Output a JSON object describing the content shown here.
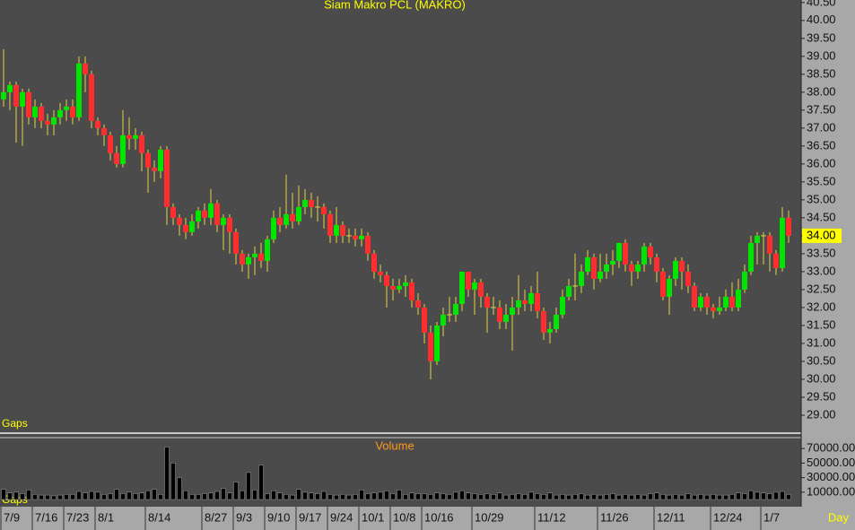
{
  "chart_data": {
    "type": "candlestick",
    "title": "Siam Makro PCL (MAKRO)",
    "gap_note": "o Gaps",
    "volume_title": "Volume",
    "period_label": "Day",
    "up_color": "#00e600",
    "down_color": "#ff2d2d",
    "wick_color": "#e6d24a",
    "volume_color": "#000000",
    "categories": [
      "7/9",
      null,
      null,
      null,
      null,
      "7/16",
      null,
      null,
      null,
      null,
      "7/23",
      null,
      null,
      null,
      null,
      "8/1",
      null,
      null,
      null,
      null,
      null,
      null,
      null,
      "8/14",
      null,
      null,
      null,
      null,
      null,
      null,
      null,
      null,
      "8/27",
      null,
      null,
      null,
      null,
      "9/3",
      null,
      null,
      null,
      null,
      "9/10",
      null,
      null,
      null,
      null,
      "9/17",
      null,
      null,
      null,
      null,
      "9/24",
      null,
      null,
      null,
      null,
      "10/1",
      null,
      null,
      null,
      null,
      "10/8",
      null,
      null,
      null,
      null,
      "10/16",
      null,
      null,
      null,
      null,
      null,
      null,
      null,
      "10/29",
      null,
      null,
      null,
      null,
      null,
      null,
      null,
      null,
      null,
      "11/12",
      null,
      null,
      null,
      null,
      null,
      null,
      null,
      null,
      null,
      "11/26",
      null,
      null,
      null,
      null,
      null,
      null,
      null,
      null,
      "12/11",
      null,
      null,
      null,
      null,
      null,
      null,
      null,
      null,
      "12/24",
      null,
      null,
      null,
      null,
      null,
      null,
      null,
      "1/7",
      null,
      null,
      null,
      null
    ],
    "open": [
      37.8,
      38.0,
      38.2,
      37.6,
      38.0,
      37.3,
      37.6,
      37.2,
      37.1,
      37.3,
      37.5,
      37.6,
      37.3,
      38.8,
      38.5,
      37.2,
      37.0,
      36.8,
      36.3,
      36.0,
      36.8,
      36.7,
      36.8,
      36.3,
      35.9,
      35.8,
      36.4,
      34.8,
      34.5,
      34.3,
      34.1,
      34.4,
      34.7,
      34.5,
      34.9,
      34.3,
      34.5,
      34.1,
      33.5,
      33.2,
      33.4,
      33.5,
      33.3,
      33.9,
      34.5,
      34.3,
      34.6,
      34.4,
      34.8,
      35.0,
      34.8,
      34.8,
      34.6,
      34.0,
      34.3,
      34.0,
      34.0,
      33.9,
      34.0,
      33.5,
      33.0,
      32.9,
      32.6,
      32.5,
      32.6,
      32.7,
      32.2,
      32.0,
      31.3,
      30.5,
      31.5,
      31.8,
      31.8,
      32.1,
      33.0,
      32.5,
      32.7,
      32.3,
      32.0,
      32.0,
      31.6,
      31.8,
      32.0,
      32.2,
      32.1,
      32.4,
      31.9,
      31.3,
      31.4,
      31.8,
      32.3,
      32.6,
      32.6,
      33.0,
      33.4,
      32.8,
      33.0,
      33.2,
      33.3,
      33.8,
      33.2,
      33.0,
      33.2,
      33.7,
      33.4,
      33.0,
      32.3,
      32.8,
      33.3,
      33.0,
      32.6,
      32.0,
      32.3,
      32.0,
      31.9,
      32.0,
      32.3,
      32.0,
      32.5,
      33.0,
      33.8,
      34.0,
      34.0,
      33.5,
      33.1,
      34.5
    ],
    "high": [
      39.2,
      38.3,
      38.3,
      38.1,
      38.1,
      37.8,
      37.7,
      37.4,
      37.5,
      37.7,
      37.8,
      37.8,
      39.0,
      39.0,
      38.6,
      37.3,
      37.1,
      36.9,
      36.5,
      37.5,
      37.3,
      37.0,
      36.9,
      36.4,
      36.1,
      36.5,
      36.5,
      34.9,
      34.6,
      34.5,
      34.6,
      34.8,
      34.9,
      35.3,
      35.0,
      34.6,
      34.6,
      34.2,
      33.6,
      33.5,
      33.7,
      33.8,
      34.0,
      34.7,
      34.8,
      35.7,
      35.2,
      35.4,
      35.3,
      35.2,
      35.1,
      34.9,
      34.7,
      34.8,
      34.4,
      34.2,
      34.2,
      34.2,
      34.1,
      33.6,
      33.2,
      33.0,
      32.8,
      32.8,
      32.9,
      32.8,
      32.4,
      32.1,
      31.5,
      31.6,
      32.0,
      32.3,
      32.3,
      33.0,
      33.0,
      32.8,
      32.8,
      32.4,
      32.3,
      32.2,
      32.1,
      32.3,
      32.9,
      32.5,
      32.6,
      33.0,
      32.0,
      31.6,
      32.0,
      32.5,
      32.8,
      33.5,
      33.2,
      33.6,
      33.5,
      33.5,
      33.5,
      33.6,
      33.8,
      33.9,
      33.3,
      33.3,
      33.8,
      33.8,
      33.5,
      33.1,
      32.9,
      33.4,
      33.4,
      33.2,
      32.7,
      32.4,
      32.4,
      32.1,
      32.3,
      32.5,
      32.7,
      32.8,
      33.2,
      34.0,
      34.1,
      34.1,
      34.1,
      33.6,
      34.8,
      34.7
    ],
    "low": [
      37.6,
      37.5,
      36.6,
      36.5,
      37.1,
      37.0,
      37.0,
      36.8,
      36.8,
      37.1,
      37.2,
      37.1,
      37.2,
      38.0,
      37.0,
      36.8,
      36.5,
      36.1,
      35.9,
      35.9,
      36.4,
      36.4,
      35.8,
      35.2,
      35.5,
      35.6,
      34.3,
      34.3,
      34.0,
      33.9,
      34.0,
      34.2,
      34.3,
      34.3,
      34.1,
      33.6,
      33.5,
      33.2,
      33.0,
      32.8,
      32.9,
      33.1,
      33.0,
      33.8,
      34.1,
      34.2,
      34.2,
      34.3,
      34.6,
      34.5,
      34.4,
      34.2,
      33.8,
      33.8,
      33.8,
      33.8,
      33.7,
      33.7,
      33.3,
      32.8,
      32.7,
      32.0,
      32.2,
      32.4,
      32.3,
      32.0,
      31.8,
      31.0,
      30.0,
      30.4,
      31.2,
      31.6,
      31.6,
      31.9,
      32.3,
      31.8,
      32.0,
      31.3,
      31.8,
      31.4,
      31.4,
      30.8,
      31.8,
      31.9,
      31.9,
      31.7,
      31.1,
      31.0,
      31.3,
      31.7,
      32.2,
      32.2,
      32.4,
      32.9,
      32.5,
      32.7,
      32.8,
      32.9,
      33.1,
      33.0,
      32.6,
      32.8,
      33.0,
      33.2,
      32.7,
      32.2,
      31.8,
      32.6,
      32.5,
      32.4,
      31.9,
      31.9,
      31.8,
      31.7,
      31.8,
      31.9,
      31.9,
      31.9,
      32.4,
      32.9,
      33.2,
      33.2,
      33.0,
      32.9,
      33.0,
      33.8
    ],
    "close": [
      38.0,
      38.2,
      37.6,
      38.0,
      37.3,
      37.6,
      37.2,
      37.1,
      37.3,
      37.5,
      37.6,
      37.3,
      38.8,
      38.5,
      37.2,
      37.0,
      36.8,
      36.3,
      36.0,
      36.8,
      36.7,
      36.8,
      36.3,
      35.9,
      35.8,
      36.4,
      34.8,
      34.5,
      34.3,
      34.1,
      34.4,
      34.7,
      34.5,
      34.9,
      34.3,
      34.5,
      34.1,
      33.5,
      33.2,
      33.4,
      33.5,
      33.3,
      33.9,
      34.5,
      34.3,
      34.6,
      34.4,
      34.8,
      35.0,
      34.8,
      34.8,
      34.6,
      34.0,
      34.3,
      34.0,
      34.0,
      33.9,
      34.0,
      33.5,
      33.0,
      32.9,
      32.6,
      32.5,
      32.6,
      32.7,
      32.2,
      32.0,
      31.3,
      30.5,
      31.5,
      31.8,
      31.8,
      32.1,
      33.0,
      32.5,
      32.7,
      32.3,
      32.0,
      32.0,
      31.6,
      31.8,
      32.0,
      32.2,
      32.1,
      32.4,
      31.9,
      31.3,
      31.4,
      31.8,
      32.3,
      32.6,
      32.6,
      33.0,
      33.4,
      32.8,
      33.0,
      33.2,
      33.3,
      33.8,
      33.2,
      33.0,
      33.2,
      33.7,
      33.4,
      33.0,
      32.3,
      32.8,
      33.3,
      33.0,
      32.6,
      32.0,
      32.3,
      32.0,
      31.9,
      32.0,
      32.3,
      32.0,
      32.5,
      33.0,
      33.8,
      34.0,
      34.0,
      33.5,
      33.1,
      34.5,
      34.0
    ],
    "last_close_label": "34.00",
    "volume": [
      14000,
      9000,
      10000,
      8000,
      13000,
      7000,
      6000,
      6000,
      5000,
      6000,
      7000,
      7000,
      11000,
      9000,
      11000,
      10000,
      7000,
      8000,
      14000,
      8000,
      10000,
      8000,
      9000,
      12000,
      14000,
      7000,
      72000,
      50000,
      30000,
      12000,
      7000,
      7000,
      8000,
      9000,
      11000,
      15000,
      9000,
      24000,
      12000,
      37000,
      13000,
      47000,
      8000,
      12000,
      9000,
      7000,
      6000,
      14000,
      10000,
      9000,
      8000,
      11000,
      7000,
      6000,
      7000,
      6000,
      7000,
      13000,
      8000,
      9000,
      10000,
      12000,
      8000,
      13000,
      7000,
      9000,
      8000,
      8000,
      7000,
      9000,
      8000,
      7000,
      10000,
      12000,
      9000,
      8000,
      7000,
      8000,
      7000,
      9000,
      6000,
      7000,
      8000,
      7000,
      10000,
      8000,
      7000,
      9000,
      6000,
      7000,
      6000,
      7000,
      8000,
      6000,
      7000,
      6000,
      7000,
      8000,
      6000,
      7000,
      6000,
      7000,
      6000,
      8000,
      9000,
      7000,
      6000,
      7000,
      6000,
      8000,
      6000,
      7000,
      6000,
      7000,
      6000,
      6000,
      7000,
      9000,
      8000,
      12000,
      10000,
      9000,
      8000,
      10000,
      11000,
      7000
    ],
    "ylim": [
      28.55,
      40.57
    ],
    "yticks": [
      {
        "value": 29,
        "label": "29.00"
      },
      {
        "value": 29.5,
        "label": "29.50"
      },
      {
        "value": 30,
        "label": "30.00"
      },
      {
        "value": 30.5,
        "label": "30.50"
      },
      {
        "value": 31,
        "label": "31.00"
      },
      {
        "value": 31.5,
        "label": "31.50"
      },
      {
        "value": 32,
        "label": "32.00"
      },
      {
        "value": 32.5,
        "label": "32.50"
      },
      {
        "value": 33,
        "label": "33.00"
      },
      {
        "value": 33.5,
        "label": "33.50"
      },
      {
        "value": 34,
        "label": "34.00"
      },
      {
        "value": 34.5,
        "label": "34.50"
      },
      {
        "value": 35,
        "label": "35.00"
      },
      {
        "value": 35.5,
        "label": "35.50"
      },
      {
        "value": 36,
        "label": "36.00"
      },
      {
        "value": 36.5,
        "label": "36.50"
      },
      {
        "value": 37,
        "label": "37.00"
      },
      {
        "value": 37.5,
        "label": "37.50"
      },
      {
        "value": 38,
        "label": "38.00"
      },
      {
        "value": 38.5,
        "label": "38.50"
      },
      {
        "value": 39,
        "label": "39.00"
      },
      {
        "value": 39.5,
        "label": "39.50"
      },
      {
        "value": 40,
        "label": "40.00"
      },
      {
        "value": 40.5,
        "label": "40.50"
      }
    ],
    "y2lim": [
      0,
      80000
    ],
    "y2ticks": [
      {
        "value": 10000,
        "label": "10000.00"
      },
      {
        "value": 30000,
        "label": "30000.00"
      },
      {
        "value": 50000,
        "label": "50000.00"
      },
      {
        "value": 70000,
        "label": "70000.00"
      }
    ]
  }
}
